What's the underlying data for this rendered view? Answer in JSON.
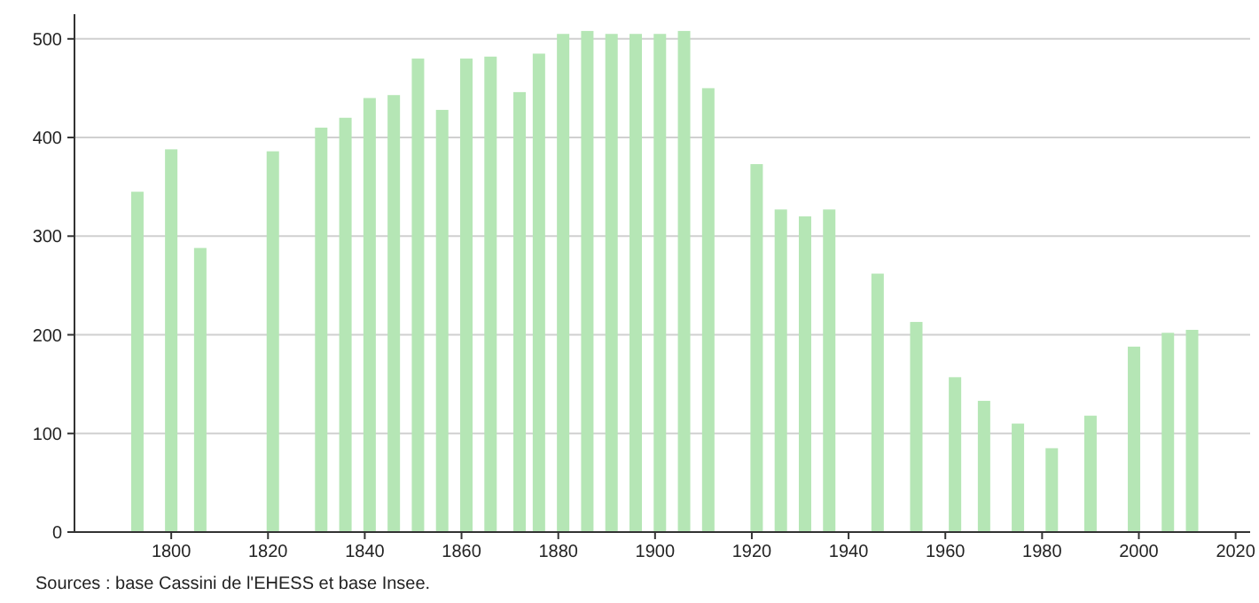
{
  "chart_data": {
    "type": "bar",
    "x": [
      1793,
      1800,
      1806,
      1821,
      1831,
      1836,
      1841,
      1846,
      1851,
      1856,
      1861,
      1866,
      1872,
      1876,
      1881,
      1886,
      1891,
      1896,
      1901,
      1906,
      1911,
      1921,
      1926,
      1931,
      1936,
      1946,
      1954,
      1962,
      1968,
      1975,
      1982,
      1990,
      1999,
      2006,
      2011
    ],
    "values": [
      345,
      388,
      288,
      386,
      410,
      420,
      440,
      443,
      480,
      428,
      480,
      482,
      446,
      485,
      505,
      508,
      505,
      505,
      505,
      508,
      450,
      373,
      327,
      320,
      327,
      262,
      213,
      157,
      133,
      110,
      85,
      118,
      188,
      202,
      205
    ],
    "color": "#b5e6b5",
    "xlim": [
      1780,
      2023
    ],
    "xticks": [
      1800,
      1820,
      1840,
      1860,
      1880,
      1900,
      1920,
      1940,
      1960,
      1980,
      2000,
      2020
    ],
    "ylim": [
      0,
      525
    ],
    "yticks": [
      0,
      100,
      200,
      300,
      400,
      500
    ],
    "grid": "y",
    "annotations": [
      "Sources : base Cassini de l'EHESS et base Insee."
    ]
  }
}
